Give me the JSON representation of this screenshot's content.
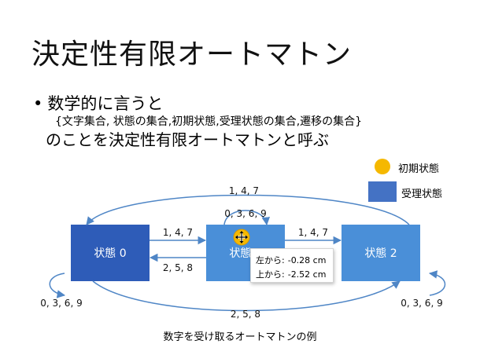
{
  "slide": {
    "title": "決定性有限オートマトン",
    "bullet_marker": "•",
    "bullet_text": "数学的に言うと",
    "set_text": "{文字集合, 状態の集合,初期状態,受理状態の集合,遷移の集合}",
    "description": "のことを決定性有限オートマトンと呼ぶ",
    "caption": "数字を受け取るオートマトンの例"
  },
  "legend": {
    "initial_label": "初期状態",
    "accept_label": "受理状態",
    "initial_color": "#f5b800",
    "accept_color": "#4472c4"
  },
  "states": [
    {
      "label": "状態 0",
      "color": "#2e5cb8"
    },
    {
      "label": "状態 1",
      "color": "#4a8fd8"
    },
    {
      "label": "状態 2",
      "color": "#4a8fd8"
    }
  ],
  "transitions": {
    "s0_to_s1": "1, 4, 7",
    "s1_to_s0": "2, 5, 8",
    "s1_to_s2": "1, 4, 7",
    "s1_self": "0, 3, 6, 9",
    "s2_to_s0_top": "1, 4, 7",
    "s0_to_s2_bottom": "2, 5, 8",
    "s0_self": "0, 3, 6, 9",
    "s2_self": "0, 3, 6, 9"
  },
  "tooltip": {
    "left_label": "左から:",
    "left_value": "-0.28 cm",
    "top_label": "上から:",
    "top_value": "-2.52 cm"
  },
  "colors": {
    "arrow": "#4f86c6"
  }
}
